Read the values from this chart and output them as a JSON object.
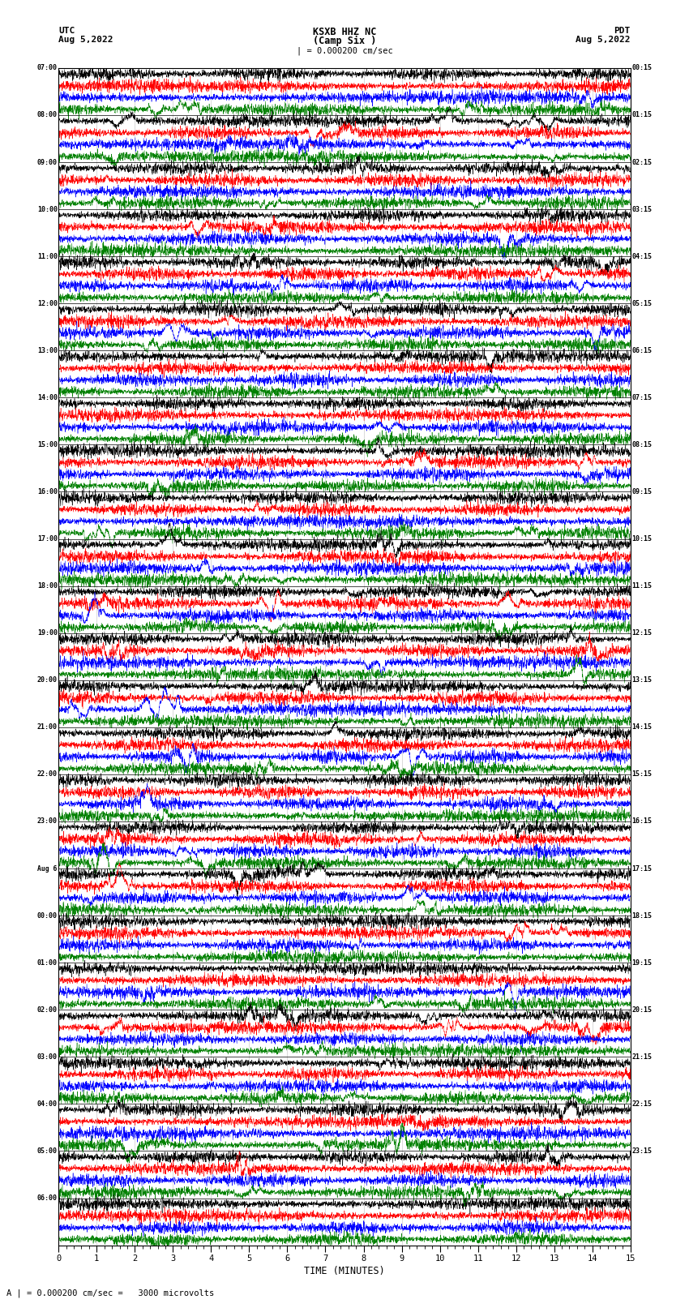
{
  "title_center": "KSXB HHZ NC\n(Camp Six )",
  "title_left_top": "UTC",
  "title_left_date": "Aug 5,2022",
  "title_right_top": "PDT",
  "title_right_date": "Aug 5,2022",
  "scale_bar": "| = 0.000200 cm/sec",
  "scale_bar2": "A | = 0.000200 cm/sec =   3000 microvolts",
  "xlabel": "TIME (MINUTES)",
  "xmin": 0,
  "xmax": 15,
  "xticks_major": [
    0,
    1,
    2,
    3,
    4,
    5,
    6,
    7,
    8,
    9,
    10,
    11,
    12,
    13,
    14,
    15
  ],
  "left_times": [
    "07:00",
    "08:00",
    "09:00",
    "10:00",
    "11:00",
    "12:00",
    "13:00",
    "14:00",
    "15:00",
    "16:00",
    "17:00",
    "18:00",
    "19:00",
    "20:00",
    "21:00",
    "22:00",
    "23:00",
    "Aug 6",
    "00:00",
    "01:00",
    "02:00",
    "03:00",
    "04:00",
    "05:00",
    "06:00"
  ],
  "right_times": [
    "00:15",
    "01:15",
    "02:15",
    "03:15",
    "04:15",
    "05:15",
    "06:15",
    "07:15",
    "08:15",
    "09:15",
    "10:15",
    "11:15",
    "12:15",
    "13:15",
    "14:15",
    "15:15",
    "16:15",
    "17:15",
    "18:15",
    "19:15",
    "20:15",
    "21:15",
    "22:15",
    "23:15"
  ],
  "colors": [
    "black",
    "red",
    "blue",
    "green"
  ],
  "n_hours": 25,
  "traces_per_hour": 4,
  "bg_color": "white",
  "line_width": 0.35,
  "noise_amp": 0.32,
  "fig_width": 8.5,
  "fig_height": 16.13,
  "n_points": 3000
}
